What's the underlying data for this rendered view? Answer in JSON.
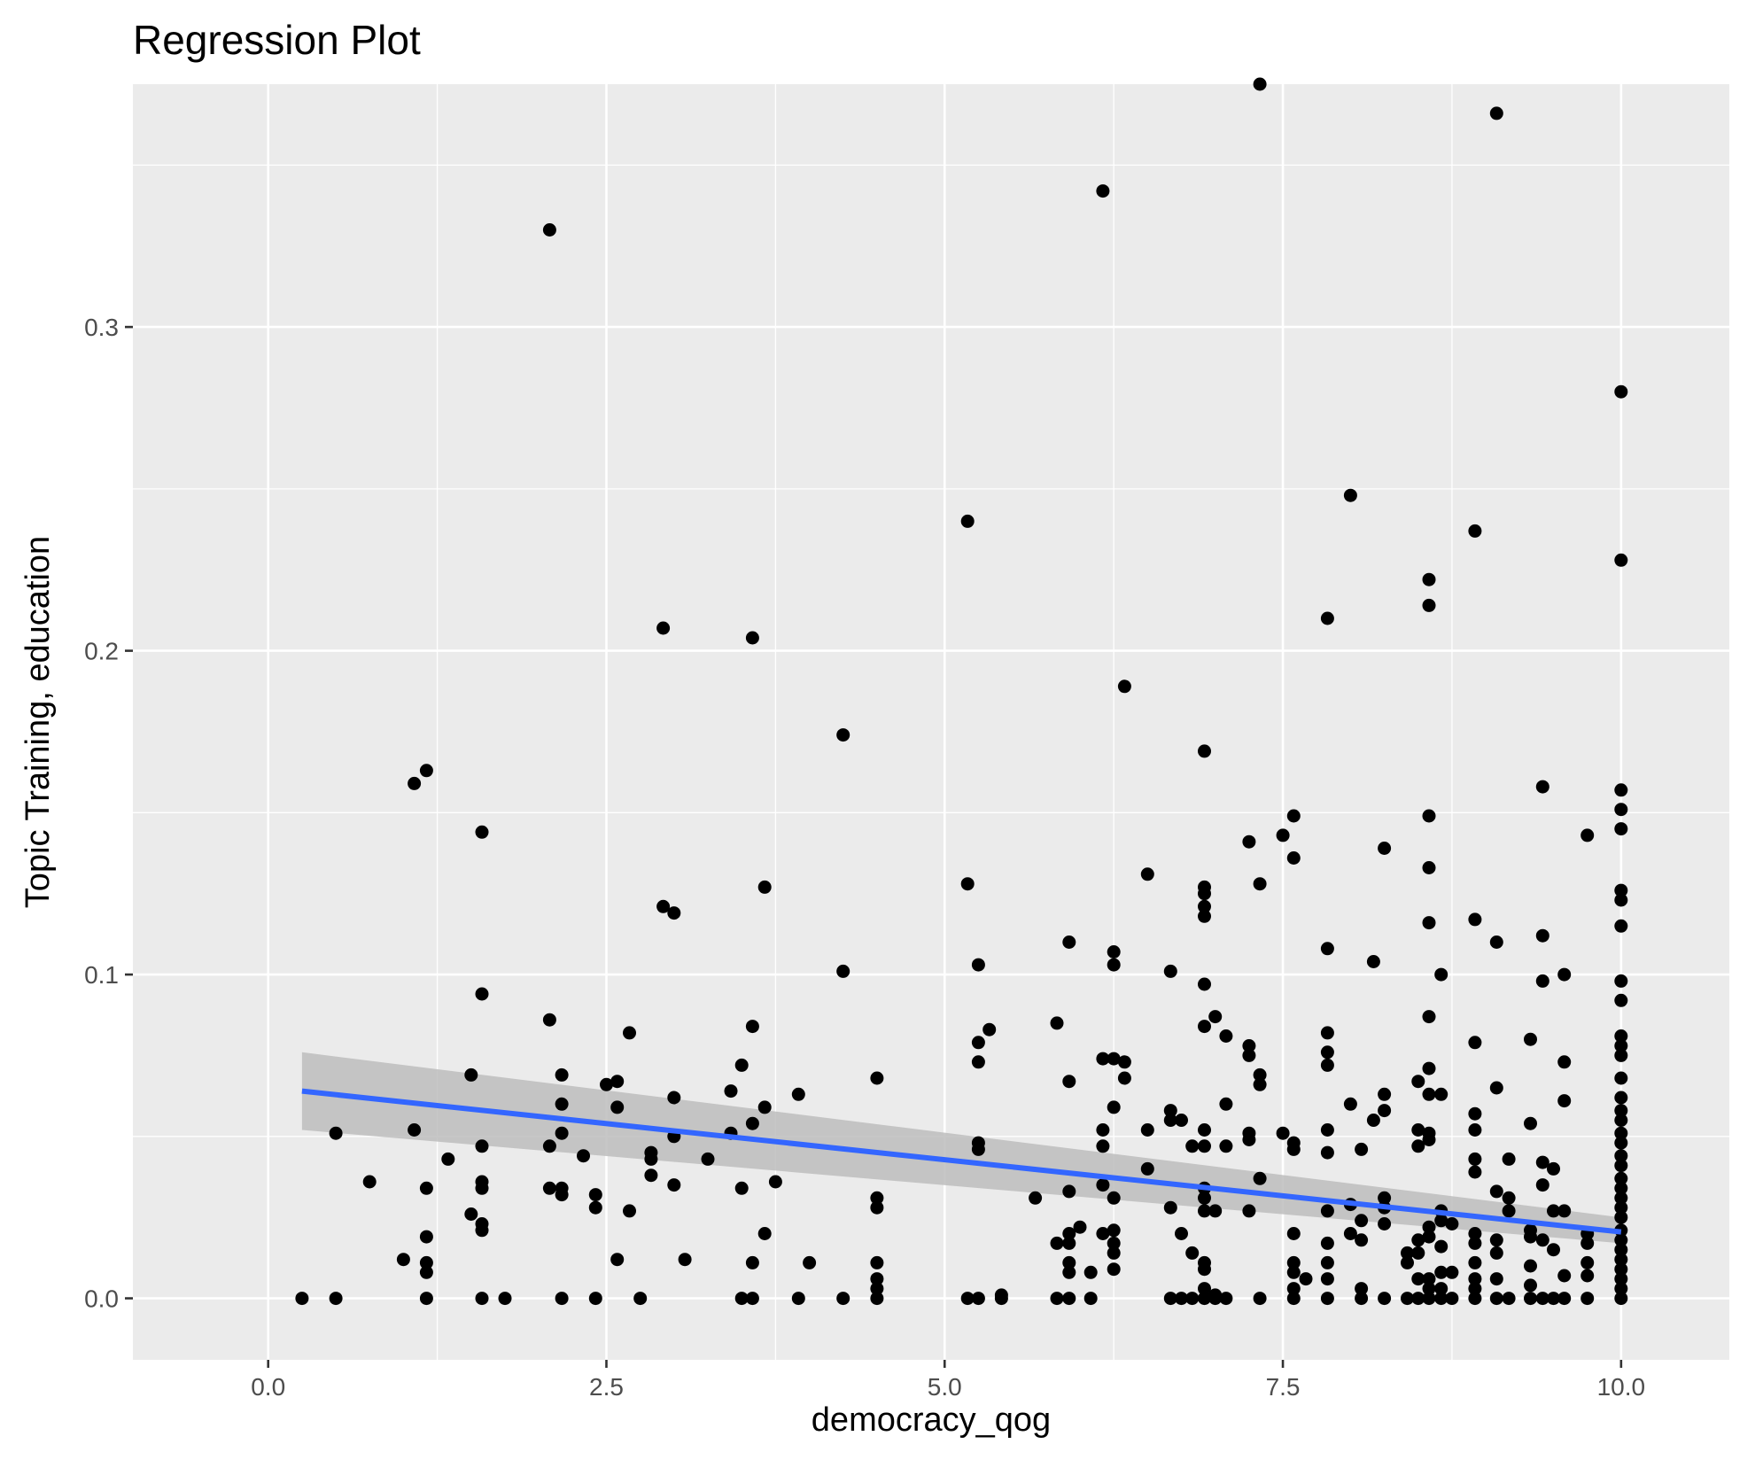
{
  "chart_data": {
    "type": "scatter",
    "title": "Regression Plot",
    "xlabel": "democracy_qog",
    "ylabel": "Topic Training, education",
    "xlim": [
      -1.0,
      10.8
    ],
    "ylim": [
      -0.019,
      0.375
    ],
    "xticks": [
      0.0,
      2.5,
      5.0,
      7.5,
      10.0
    ],
    "xtick_labels": [
      "0.0",
      "2.5",
      "5.0",
      "7.5",
      "10.0"
    ],
    "yticks": [
      0.0,
      0.1,
      0.2,
      0.3
    ],
    "ytick_labels": [
      "0.0",
      "0.1",
      "0.2",
      "0.3"
    ],
    "grid": true,
    "colors": {
      "panel": "#ebebeb",
      "grid": "#ffffff",
      "points": "#000000",
      "line": "#3366ff",
      "band": "#bdbdbd"
    },
    "regression": {
      "x": [
        0.25,
        10.0
      ],
      "y": [
        0.064,
        0.0205
      ],
      "ci_lower": [
        0.052,
        0.017
      ],
      "ci_upper": [
        0.076,
        0.025
      ]
    },
    "points": [
      [
        0.25,
        0.0
      ],
      [
        0.5,
        0.0
      ],
      [
        0.5,
        0.051
      ],
      [
        0.75,
        0.036
      ],
      [
        1.0,
        0.012
      ],
      [
        1.08,
        0.052
      ],
      [
        1.08,
        0.159
      ],
      [
        1.17,
        0.163
      ],
      [
        1.17,
        0.034
      ],
      [
        1.17,
        0.019
      ],
      [
        1.17,
        0.011
      ],
      [
        1.17,
        0.008
      ],
      [
        1.17,
        0.0
      ],
      [
        1.33,
        0.043
      ],
      [
        1.5,
        0.069
      ],
      [
        1.5,
        0.026
      ],
      [
        1.58,
        0.144
      ],
      [
        1.58,
        0.094
      ],
      [
        1.58,
        0.047
      ],
      [
        1.58,
        0.036
      ],
      [
        1.58,
        0.034
      ],
      [
        1.58,
        0.023
      ],
      [
        1.58,
        0.021
      ],
      [
        1.58,
        0.0
      ],
      [
        1.75,
        0.0
      ],
      [
        2.08,
        0.33
      ],
      [
        2.08,
        0.086
      ],
      [
        2.08,
        0.047
      ],
      [
        2.08,
        0.034
      ],
      [
        2.17,
        0.069
      ],
      [
        2.17,
        0.06
      ],
      [
        2.17,
        0.051
      ],
      [
        2.17,
        0.034
      ],
      [
        2.17,
        0.032
      ],
      [
        2.17,
        0.0
      ],
      [
        2.33,
        0.044
      ],
      [
        2.42,
        0.032
      ],
      [
        2.42,
        0.028
      ],
      [
        2.42,
        0.0
      ],
      [
        2.5,
        0.066
      ],
      [
        2.58,
        0.067
      ],
      [
        2.58,
        0.059
      ],
      [
        2.58,
        0.012
      ],
      [
        2.67,
        0.082
      ],
      [
        2.67,
        0.027
      ],
      [
        2.75,
        0.0
      ],
      [
        2.83,
        0.045
      ],
      [
        2.83,
        0.043
      ],
      [
        2.83,
        0.038
      ],
      [
        2.92,
        0.207
      ],
      [
        2.92,
        0.121
      ],
      [
        3.0,
        0.119
      ],
      [
        3.0,
        0.062
      ],
      [
        3.0,
        0.05
      ],
      [
        3.0,
        0.035
      ],
      [
        3.08,
        0.012
      ],
      [
        3.25,
        0.043
      ],
      [
        3.42,
        0.064
      ],
      [
        3.42,
        0.051
      ],
      [
        3.5,
        0.072
      ],
      [
        3.5,
        0.034
      ],
      [
        3.5,
        0.0
      ],
      [
        3.58,
        0.204
      ],
      [
        3.58,
        0.084
      ],
      [
        3.58,
        0.054
      ],
      [
        3.58,
        0.011
      ],
      [
        3.58,
        0.0
      ],
      [
        3.67,
        0.127
      ],
      [
        3.67,
        0.059
      ],
      [
        3.67,
        0.02
      ],
      [
        3.75,
        0.036
      ],
      [
        3.92,
        0.063
      ],
      [
        3.92,
        0.0
      ],
      [
        4.0,
        0.011
      ],
      [
        4.25,
        0.174
      ],
      [
        4.25,
        0.101
      ],
      [
        4.25,
        0.0
      ],
      [
        4.5,
        0.068
      ],
      [
        4.5,
        0.031
      ],
      [
        4.5,
        0.028
      ],
      [
        4.5,
        0.011
      ],
      [
        4.5,
        0.006
      ],
      [
        4.5,
        0.003
      ],
      [
        4.5,
        0.0
      ],
      [
        5.17,
        0.24
      ],
      [
        5.17,
        0.128
      ],
      [
        5.17,
        0.0
      ],
      [
        5.25,
        0.103
      ],
      [
        5.25,
        0.079
      ],
      [
        5.25,
        0.073
      ],
      [
        5.25,
        0.048
      ],
      [
        5.25,
        0.046
      ],
      [
        5.25,
        0.0
      ],
      [
        5.33,
        0.083
      ],
      [
        5.42,
        0.001
      ],
      [
        5.42,
        0.0
      ],
      [
        5.67,
        0.031
      ],
      [
        5.83,
        0.085
      ],
      [
        5.83,
        0.017
      ],
      [
        5.83,
        0.0
      ],
      [
        5.92,
        0.11
      ],
      [
        5.92,
        0.067
      ],
      [
        5.92,
        0.033
      ],
      [
        5.92,
        0.02
      ],
      [
        5.92,
        0.017
      ],
      [
        5.92,
        0.011
      ],
      [
        5.92,
        0.008
      ],
      [
        5.92,
        0.0
      ],
      [
        6.0,
        0.022
      ],
      [
        6.08,
        0.008
      ],
      [
        6.08,
        0.0
      ],
      [
        6.17,
        0.342
      ],
      [
        6.17,
        0.074
      ],
      [
        6.17,
        0.052
      ],
      [
        6.17,
        0.047
      ],
      [
        6.17,
        0.035
      ],
      [
        6.17,
        0.02
      ],
      [
        6.25,
        0.107
      ],
      [
        6.25,
        0.103
      ],
      [
        6.25,
        0.074
      ],
      [
        6.25,
        0.059
      ],
      [
        6.25,
        0.031
      ],
      [
        6.25,
        0.021
      ],
      [
        6.25,
        0.017
      ],
      [
        6.25,
        0.014
      ],
      [
        6.25,
        0.009
      ],
      [
        6.33,
        0.189
      ],
      [
        6.33,
        0.073
      ],
      [
        6.33,
        0.068
      ],
      [
        6.5,
        0.131
      ],
      [
        6.5,
        0.052
      ],
      [
        6.5,
        0.04
      ],
      [
        6.67,
        0.101
      ],
      [
        6.67,
        0.058
      ],
      [
        6.67,
        0.055
      ],
      [
        6.67,
        0.028
      ],
      [
        6.67,
        0.0
      ],
      [
        6.75,
        0.055
      ],
      [
        6.75,
        0.02
      ],
      [
        6.75,
        0.0
      ],
      [
        6.83,
        0.047
      ],
      [
        6.83,
        0.014
      ],
      [
        6.83,
        0.0
      ],
      [
        6.92,
        0.169
      ],
      [
        6.92,
        0.127
      ],
      [
        6.92,
        0.125
      ],
      [
        6.92,
        0.121
      ],
      [
        6.92,
        0.118
      ],
      [
        6.92,
        0.097
      ],
      [
        6.92,
        0.084
      ],
      [
        6.92,
        0.052
      ],
      [
        6.92,
        0.047
      ],
      [
        6.92,
        0.034
      ],
      [
        6.92,
        0.031
      ],
      [
        6.92,
        0.027
      ],
      [
        6.92,
        0.011
      ],
      [
        6.92,
        0.009
      ],
      [
        6.92,
        0.003
      ],
      [
        6.92,
        0.0
      ],
      [
        7.0,
        0.087
      ],
      [
        7.0,
        0.027
      ],
      [
        7.0,
        0.001
      ],
      [
        7.0,
        0.0
      ],
      [
        7.08,
        0.081
      ],
      [
        7.08,
        0.06
      ],
      [
        7.08,
        0.047
      ],
      [
        7.08,
        0.0
      ],
      [
        7.25,
        0.141
      ],
      [
        7.25,
        0.078
      ],
      [
        7.25,
        0.075
      ],
      [
        7.25,
        0.051
      ],
      [
        7.25,
        0.049
      ],
      [
        7.25,
        0.027
      ],
      [
        7.33,
        0.375
      ],
      [
        7.33,
        0.128
      ],
      [
        7.33,
        0.069
      ],
      [
        7.33,
        0.066
      ],
      [
        7.33,
        0.037
      ],
      [
        7.33,
        0.0
      ],
      [
        7.5,
        0.143
      ],
      [
        7.5,
        0.051
      ],
      [
        7.58,
        0.149
      ],
      [
        7.58,
        0.136
      ],
      [
        7.58,
        0.048
      ],
      [
        7.58,
        0.046
      ],
      [
        7.58,
        0.02
      ],
      [
        7.58,
        0.011
      ],
      [
        7.58,
        0.008
      ],
      [
        7.58,
        0.003
      ],
      [
        7.58,
        0.0
      ],
      [
        7.67,
        0.006
      ],
      [
        7.83,
        0.21
      ],
      [
        7.83,
        0.108
      ],
      [
        7.83,
        0.082
      ],
      [
        7.83,
        0.076
      ],
      [
        7.83,
        0.072
      ],
      [
        7.83,
        0.052
      ],
      [
        7.83,
        0.045
      ],
      [
        7.83,
        0.027
      ],
      [
        7.83,
        0.017
      ],
      [
        7.83,
        0.011
      ],
      [
        7.83,
        0.006
      ],
      [
        7.83,
        0.0
      ],
      [
        8.0,
        0.248
      ],
      [
        8.0,
        0.06
      ],
      [
        8.0,
        0.029
      ],
      [
        8.0,
        0.02
      ],
      [
        8.08,
        0.046
      ],
      [
        8.08,
        0.024
      ],
      [
        8.08,
        0.018
      ],
      [
        8.08,
        0.003
      ],
      [
        8.08,
        0.0
      ],
      [
        8.17,
        0.104
      ],
      [
        8.17,
        0.055
      ],
      [
        8.25,
        0.139
      ],
      [
        8.25,
        0.063
      ],
      [
        8.25,
        0.058
      ],
      [
        8.25,
        0.031
      ],
      [
        8.25,
        0.028
      ],
      [
        8.25,
        0.023
      ],
      [
        8.25,
        0.0
      ],
      [
        8.42,
        0.014
      ],
      [
        8.42,
        0.011
      ],
      [
        8.42,
        0.0
      ],
      [
        8.5,
        0.067
      ],
      [
        8.5,
        0.052
      ],
      [
        8.5,
        0.047
      ],
      [
        8.5,
        0.018
      ],
      [
        8.5,
        0.014
      ],
      [
        8.5,
        0.006
      ],
      [
        8.5,
        0.0
      ],
      [
        8.58,
        0.222
      ],
      [
        8.58,
        0.214
      ],
      [
        8.58,
        0.149
      ],
      [
        8.58,
        0.133
      ],
      [
        8.58,
        0.116
      ],
      [
        8.58,
        0.087
      ],
      [
        8.58,
        0.071
      ],
      [
        8.58,
        0.063
      ],
      [
        8.58,
        0.051
      ],
      [
        8.58,
        0.049
      ],
      [
        8.58,
        0.022
      ],
      [
        8.58,
        0.019
      ],
      [
        8.58,
        0.006
      ],
      [
        8.58,
        0.003
      ],
      [
        8.58,
        0.0
      ],
      [
        8.67,
        0.1
      ],
      [
        8.67,
        0.063
      ],
      [
        8.67,
        0.027
      ],
      [
        8.67,
        0.024
      ],
      [
        8.67,
        0.016
      ],
      [
        8.67,
        0.008
      ],
      [
        8.67,
        0.003
      ],
      [
        8.67,
        0.0
      ],
      [
        8.75,
        0.023
      ],
      [
        8.75,
        0.008
      ],
      [
        8.75,
        0.0
      ],
      [
        8.92,
        0.237
      ],
      [
        8.92,
        0.117
      ],
      [
        8.92,
        0.079
      ],
      [
        8.92,
        0.057
      ],
      [
        8.92,
        0.052
      ],
      [
        8.92,
        0.043
      ],
      [
        8.92,
        0.039
      ],
      [
        8.92,
        0.02
      ],
      [
        8.92,
        0.017
      ],
      [
        8.92,
        0.011
      ],
      [
        8.92,
        0.006
      ],
      [
        8.92,
        0.003
      ],
      [
        8.92,
        0.0
      ],
      [
        9.08,
        0.366
      ],
      [
        9.08,
        0.11
      ],
      [
        9.08,
        0.065
      ],
      [
        9.08,
        0.033
      ],
      [
        9.08,
        0.018
      ],
      [
        9.08,
        0.014
      ],
      [
        9.08,
        0.006
      ],
      [
        9.08,
        0.0
      ],
      [
        9.17,
        0.043
      ],
      [
        9.17,
        0.031
      ],
      [
        9.17,
        0.027
      ],
      [
        9.17,
        0.0
      ],
      [
        9.33,
        0.08
      ],
      [
        9.33,
        0.054
      ],
      [
        9.33,
        0.021
      ],
      [
        9.33,
        0.019
      ],
      [
        9.33,
        0.01
      ],
      [
        9.33,
        0.004
      ],
      [
        9.33,
        0.0
      ],
      [
        9.42,
        0.158
      ],
      [
        9.42,
        0.112
      ],
      [
        9.42,
        0.098
      ],
      [
        9.42,
        0.042
      ],
      [
        9.42,
        0.035
      ],
      [
        9.42,
        0.018
      ],
      [
        9.42,
        0.0
      ],
      [
        9.5,
        0.04
      ],
      [
        9.5,
        0.027
      ],
      [
        9.5,
        0.015
      ],
      [
        9.5,
        0.0
      ],
      [
        9.58,
        0.1
      ],
      [
        9.58,
        0.073
      ],
      [
        9.58,
        0.061
      ],
      [
        9.58,
        0.027
      ],
      [
        9.58,
        0.007
      ],
      [
        9.58,
        0.0
      ],
      [
        9.75,
        0.143
      ],
      [
        9.75,
        0.02
      ],
      [
        9.75,
        0.017
      ],
      [
        9.75,
        0.011
      ],
      [
        9.75,
        0.007
      ],
      [
        9.75,
        0.0
      ],
      [
        10.0,
        0.28
      ],
      [
        10.0,
        0.228
      ],
      [
        10.0,
        0.157
      ],
      [
        10.0,
        0.151
      ],
      [
        10.0,
        0.145
      ],
      [
        10.0,
        0.126
      ],
      [
        10.0,
        0.123
      ],
      [
        10.0,
        0.115
      ],
      [
        10.0,
        0.098
      ],
      [
        10.0,
        0.092
      ],
      [
        10.0,
        0.081
      ],
      [
        10.0,
        0.078
      ],
      [
        10.0,
        0.075
      ],
      [
        10.0,
        0.068
      ],
      [
        10.0,
        0.062
      ],
      [
        10.0,
        0.058
      ],
      [
        10.0,
        0.055
      ],
      [
        10.0,
        0.051
      ],
      [
        10.0,
        0.048
      ],
      [
        10.0,
        0.044
      ],
      [
        10.0,
        0.041
      ],
      [
        10.0,
        0.037
      ],
      [
        10.0,
        0.034
      ],
      [
        10.0,
        0.031
      ],
      [
        10.0,
        0.028
      ],
      [
        10.0,
        0.025
      ],
      [
        10.0,
        0.021
      ],
      [
        10.0,
        0.018
      ],
      [
        10.0,
        0.015
      ],
      [
        10.0,
        0.012
      ],
      [
        10.0,
        0.009
      ],
      [
        10.0,
        0.006
      ],
      [
        10.0,
        0.003
      ],
      [
        10.0,
        0.0
      ]
    ]
  }
}
